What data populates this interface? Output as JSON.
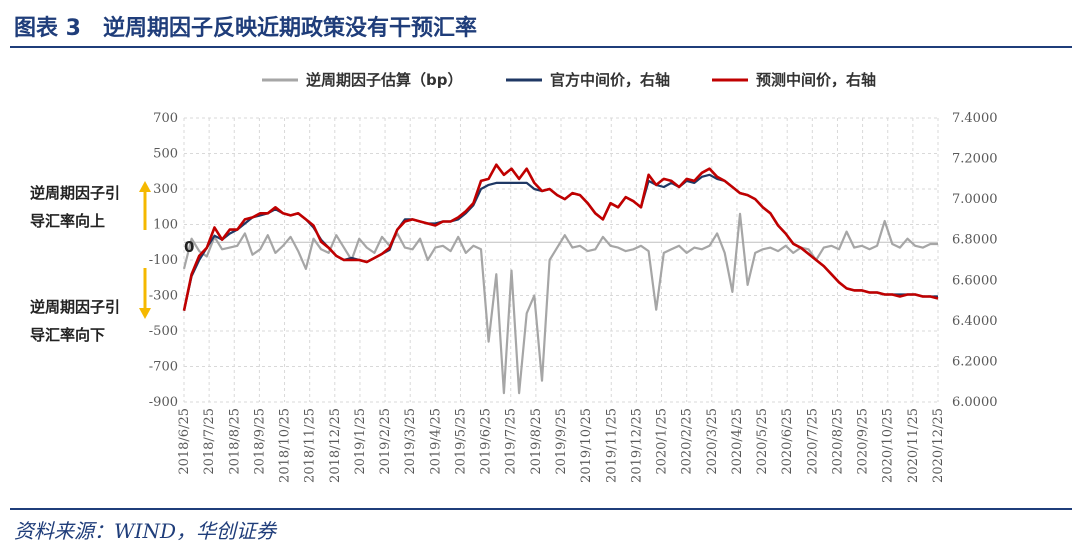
{
  "header": {
    "title": "图表 3　逆周期因子反映近期政策没有干预汇率"
  },
  "footer": {
    "source": "资料来源：WIND，华创证券"
  },
  "annotations": {
    "up_line1": "逆周期因子引",
    "up_line2": "导汇率向上",
    "down_line1": "逆周期因子引",
    "down_line2": "导汇率向下",
    "zero_label": "0"
  },
  "colors": {
    "grey": "#a6a6a6",
    "navy": "#1f3864",
    "red": "#c00000",
    "arrow": "#f5b800"
  },
  "chart_data": {
    "type": "line",
    "title": "",
    "legend": [
      "逆周期因子估算（bp）",
      "官方中间价，右轴",
      "预测中间价，右轴"
    ],
    "legend_position": "top",
    "left_axis": {
      "ylim": [
        -900,
        700
      ],
      "ticks": [
        "700",
        "500",
        "300",
        "100",
        "-100",
        "-300",
        "-500",
        "-700",
        "-900"
      ]
    },
    "right_axis": {
      "ylim": [
        6.0,
        7.4
      ],
      "ticks": [
        "7.4000",
        "7.2000",
        "7.0000",
        "6.8000",
        "6.6000",
        "6.4000",
        "6.2000",
        "6.0000"
      ]
    },
    "x_ticks": [
      "2018/6/25",
      "2018/7/25",
      "2018/8/25",
      "2018/9/25",
      "2018/10/25",
      "2018/11/25",
      "2018/12/25",
      "2019/1/25",
      "2019/2/25",
      "2019/3/25",
      "2019/4/25",
      "2019/5/25",
      "2019/6/25",
      "2019/7/25",
      "2019/8/25",
      "2019/9/25",
      "2019/10/25",
      "2019/11/25",
      "2019/12/25",
      "2020/1/25",
      "2020/2/25",
      "2020/3/25",
      "2020/4/25",
      "2020/5/25",
      "2020/6/25",
      "2020/7/25",
      "2020/8/25",
      "2020/9/25",
      "2020/10/25",
      "2020/11/25",
      "2020/12/25"
    ],
    "grid": true,
    "series": [
      {
        "name": "逆周期因子估算（bp）",
        "axis": "left",
        "values": [
          -150,
          20,
          -50,
          -80,
          30,
          -40,
          -30,
          -20,
          50,
          -70,
          -40,
          40,
          -60,
          -20,
          30,
          -50,
          -150,
          20,
          -40,
          -60,
          40,
          -30,
          -100,
          20,
          -30,
          -60,
          30,
          -20,
          50,
          -30,
          -40,
          20,
          -100,
          -30,
          -20,
          -50,
          30,
          -60,
          -20,
          -40,
          -560,
          -180,
          -850,
          -160,
          -850,
          -400,
          -300,
          -780,
          -100,
          -30,
          40,
          -30,
          -20,
          -50,
          -40,
          30,
          -20,
          -30,
          -50,
          -40,
          -20,
          -50,
          -380,
          -60,
          -40,
          -20,
          -60,
          -30,
          -40,
          -20,
          50,
          -60,
          -280,
          160,
          -240,
          -60,
          -40,
          -30,
          -50,
          -20,
          -60,
          -30,
          -40,
          -100,
          -30,
          -20,
          -40,
          60,
          -30,
          -20,
          -40,
          -20,
          120,
          -10,
          -30,
          20,
          -20,
          -30,
          -10,
          -10
        ]
      },
      {
        "name": "官方中间价，右轴",
        "axis": "right",
        "values": [
          6.45,
          6.62,
          6.7,
          6.76,
          6.82,
          6.8,
          6.83,
          6.85,
          6.88,
          6.91,
          6.92,
          6.93,
          6.95,
          6.93,
          6.92,
          6.93,
          6.9,
          6.86,
          6.8,
          6.76,
          6.72,
          6.7,
          6.71,
          6.7,
          6.69,
          6.71,
          6.73,
          6.75,
          6.85,
          6.9,
          6.9,
          6.89,
          6.88,
          6.88,
          6.89,
          6.89,
          6.9,
          6.93,
          6.97,
          7.05,
          7.07,
          7.08,
          7.08,
          7.08,
          7.08,
          7.08,
          7.05,
          7.04,
          7.05,
          7.02,
          7.0,
          7.03,
          7.02,
          6.98,
          6.93,
          6.9,
          6.98,
          6.96,
          7.01,
          6.99,
          6.96,
          7.09,
          7.07,
          7.06,
          7.08,
          7.06,
          7.09,
          7.08,
          7.11,
          7.12,
          7.1,
          7.09,
          7.06,
          7.03,
          7.02,
          7.0,
          6.96,
          6.93,
          6.87,
          6.83,
          6.78,
          6.76,
          6.73,
          6.7,
          6.67,
          6.63,
          6.59,
          6.56,
          6.55,
          6.55,
          6.54,
          6.54,
          6.53,
          6.53,
          6.53,
          6.53,
          6.53,
          6.52,
          6.52,
          6.52
        ]
      },
      {
        "name": "预测中间价，右轴",
        "axis": "right",
        "values": [
          6.45,
          6.63,
          6.72,
          6.76,
          6.86,
          6.8,
          6.85,
          6.85,
          6.9,
          6.91,
          6.93,
          6.93,
          6.96,
          6.93,
          6.92,
          6.93,
          6.9,
          6.87,
          6.79,
          6.76,
          6.72,
          6.7,
          6.7,
          6.7,
          6.69,
          6.71,
          6.73,
          6.76,
          6.85,
          6.89,
          6.9,
          6.89,
          6.88,
          6.87,
          6.89,
          6.89,
          6.91,
          6.94,
          6.98,
          7.09,
          7.1,
          7.17,
          7.12,
          7.15,
          7.1,
          7.15,
          7.08,
          7.04,
          7.05,
          7.02,
          7.0,
          7.03,
          7.02,
          6.98,
          6.93,
          6.9,
          6.98,
          6.96,
          7.01,
          6.99,
          6.96,
          7.12,
          7.07,
          7.1,
          7.09,
          7.06,
          7.1,
          7.09,
          7.13,
          7.15,
          7.11,
          7.09,
          7.06,
          7.03,
          7.02,
          7.0,
          6.96,
          6.93,
          6.87,
          6.83,
          6.78,
          6.76,
          6.73,
          6.7,
          6.67,
          6.63,
          6.59,
          6.56,
          6.55,
          6.55,
          6.54,
          6.54,
          6.53,
          6.53,
          6.52,
          6.53,
          6.53,
          6.52,
          6.52,
          6.51
        ]
      }
    ]
  }
}
